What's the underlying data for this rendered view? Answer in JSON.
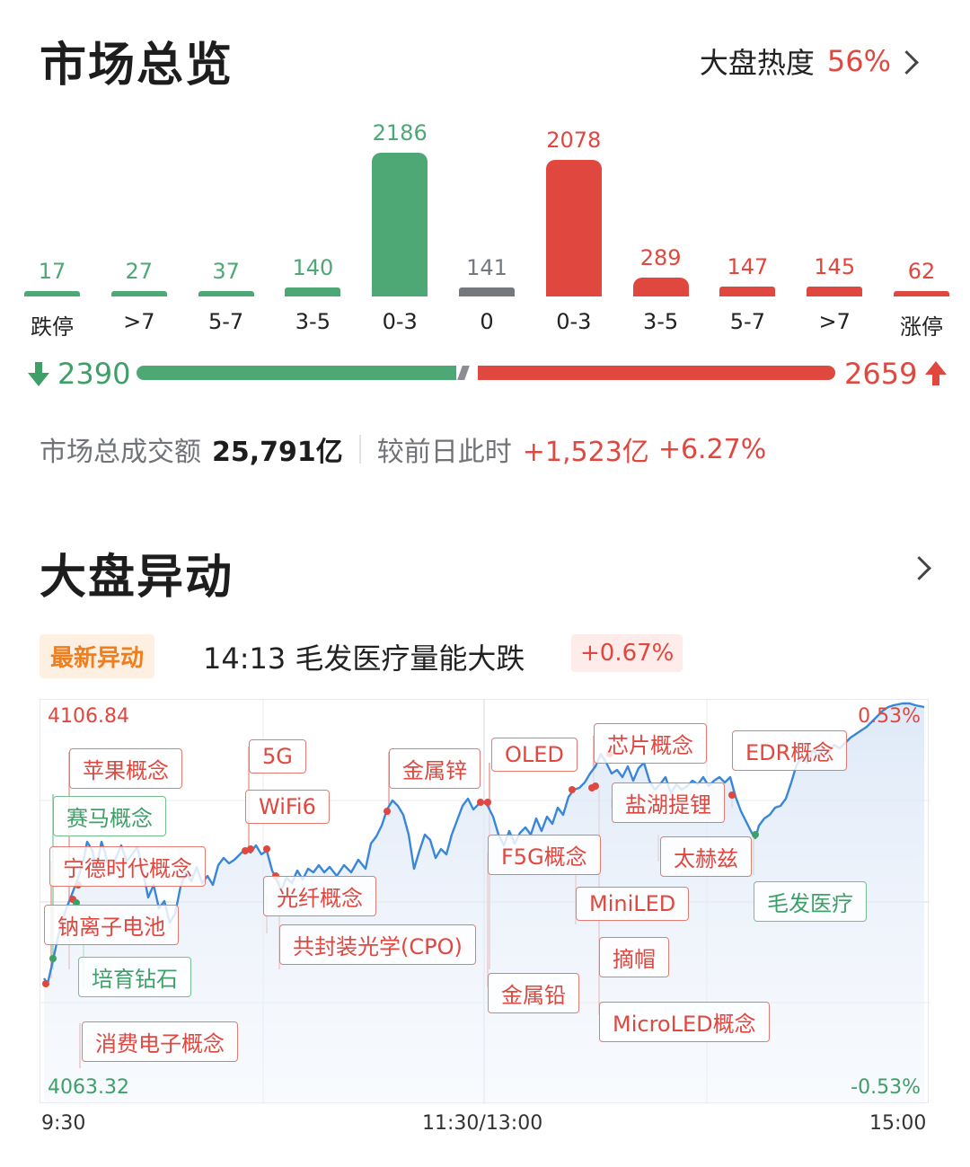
{
  "overview": {
    "title": "市场总览",
    "heat_label": "大盘热度",
    "heat_value": "56%",
    "down_total": "2390",
    "up_total": "2659",
    "turnover_label": "市场总成交额",
    "turnover_value": "25,791亿",
    "compare_label": "较前日此时",
    "compare_value": "+1,523亿",
    "compare_pct": "+6.27%"
  },
  "chart_data": {
    "type": "bar",
    "categories": [
      "跌停",
      ">7",
      "5-7",
      "3-5",
      "0-3",
      "0",
      "0-3",
      "3-5",
      "5-7",
      ">7",
      "涨停"
    ],
    "values": [
      17,
      27,
      37,
      140,
      2186,
      141,
      2078,
      289,
      147,
      145,
      62
    ],
    "colors": [
      "#4ea876",
      "#4ea876",
      "#4ea876",
      "#4ea876",
      "#4ea876",
      "#75787c",
      "#e0473f",
      "#e0473f",
      "#e0473f",
      "#e0473f",
      "#e0473f"
    ]
  },
  "movement": {
    "title": "大盘异动",
    "latest_label": "最新异动",
    "latest_text": "14:13 毛发医疗量能大跌",
    "latest_pct": "+0.67%",
    "y_max": "4106.84",
    "y_min": "4063.32",
    "pct_max": "0.53%",
    "pct_min": "-0.53%",
    "x_start": "9:30",
    "x_mid": "11:30/13:00",
    "x_end": "15:00",
    "tags": [
      "苹果概念",
      "赛马概念",
      "宁德时代概念",
      "钠离子电池",
      "培育钻石",
      "消费电子概念",
      "5G",
      "WiFi6",
      "光纤概念",
      "共封装光学(CPO)",
      "金属锌",
      "OLED",
      "F5G概念",
      "金属铅",
      "芯片概念",
      "盐湖提锂",
      "MiniLED",
      "摘帽",
      "MicroLED概念",
      "EDR概念",
      "太赫兹",
      "毛发医疗"
    ]
  },
  "colors": {
    "up": "#e0473f",
    "down": "#3f9f68",
    "flat": "#75787c",
    "line": "#3a86d8"
  }
}
